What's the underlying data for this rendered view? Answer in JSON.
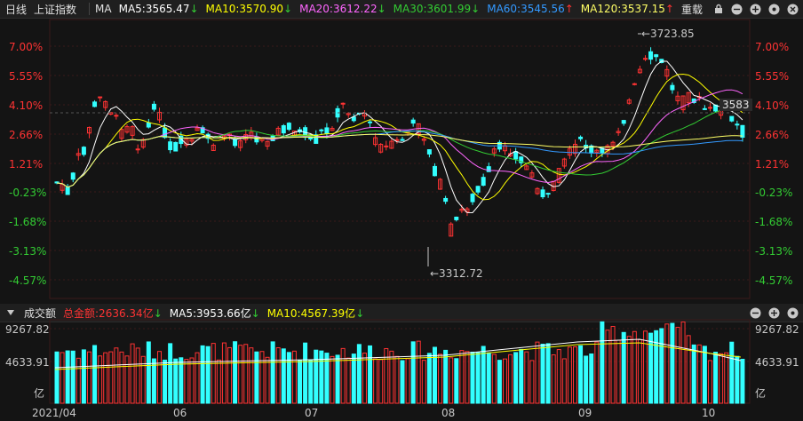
{
  "toolbar": {
    "tab_label": "日线",
    "index_name": "上证指数",
    "indicator": "MA",
    "ma5": "MA5:3565.47",
    "ma10": "MA10:3570.90",
    "ma20": "MA20:3612.22",
    "ma30": "MA30:3601.99",
    "ma60": "MA60:3545.56",
    "ma120": "MA120:3537.15",
    "overlay_label": "重载",
    "colors": {
      "ma5": "#ffffff",
      "ma10": "#ffff00",
      "ma20": "#ff66ff",
      "ma30": "#33cc33",
      "ma60": "#3399ff",
      "ma120": "#ffff66",
      "up": "#ff3333",
      "down": "#33ffff"
    }
  },
  "volume_bar": {
    "title": "成交额",
    "total": "总金额:2636.34亿",
    "ma5": "MA5:3953.66亿",
    "ma10": "MA10:4567.39亿"
  },
  "price_axis": {
    "left": [
      "7.00%",
      "5.55%",
      "4.10%",
      "2.66%",
      "1.21%",
      "-0.23%",
      "-1.68%",
      "-3.13%",
      "-4.57%"
    ],
    "right": [
      "7.00%",
      "5.55%",
      "4.10%",
      "2.66%",
      "1.21%",
      "-0.23%",
      "-1.68%",
      "-3.13%",
      "-4.57%"
    ],
    "current_price": "3583"
  },
  "volume_axis": {
    "labels": [
      "9267.82",
      "4633.91",
      "亿"
    ]
  },
  "date_axis": [
    "2021/04",
    "06",
    "07",
    "08",
    "09",
    "10"
  ],
  "annotations": {
    "high": "←3723.85",
    "low": "←3312.72"
  },
  "chart_data": {
    "type": "candlestick",
    "title": "上证指数",
    "y_range_pct": [
      -4.57,
      7.0
    ],
    "high": 3723.85,
    "low": 3312.72,
    "current": 3583,
    "volume_range": [
      0,
      9267.82
    ],
    "x_labels": [
      "2021/04",
      "06",
      "07",
      "08",
      "09",
      "10"
    ]
  }
}
